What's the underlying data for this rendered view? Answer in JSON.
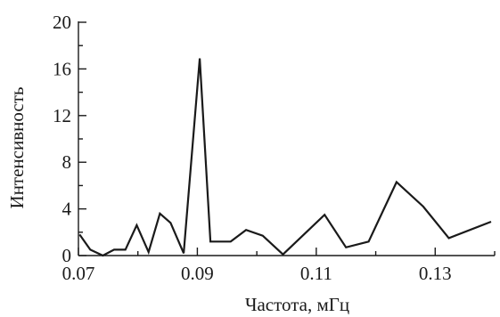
{
  "chart_data": {
    "type": "line",
    "title": "",
    "xlabel": "Частота, мГц",
    "ylabel": "Интенсивность",
    "xlim": [
      0.07,
      0.14
    ],
    "ylim": [
      0,
      20
    ],
    "xticks": [
      0.07,
      0.09,
      0.11,
      0.13
    ],
    "xtick_labels": [
      "0.07",
      "0.09",
      "0.11",
      "0.13"
    ],
    "yticks": [
      0,
      4,
      8,
      12,
      16,
      20
    ],
    "ytick_labels": [
      "0",
      "4",
      "8",
      "12",
      "16",
      "20"
    ],
    "grid": false,
    "series": [
      {
        "x": [
          0.0702,
          0.072,
          0.0741,
          0.076,
          0.0779,
          0.0798,
          0.0818,
          0.0837,
          0.0855,
          0.0877,
          0.0904,
          0.0922,
          0.0956,
          0.0982,
          0.101,
          0.1044,
          0.1114,
          0.115,
          0.1188,
          0.1235,
          0.128,
          0.1323,
          0.1394
        ],
        "y": [
          1.8,
          0.5,
          0.0,
          0.5,
          0.5,
          2.6,
          0.3,
          3.6,
          2.8,
          0.2,
          16.9,
          1.2,
          1.2,
          2.2,
          1.7,
          0.1,
          3.5,
          0.7,
          1.2,
          6.3,
          4.2,
          1.5,
          2.9
        ]
      }
    ]
  }
}
